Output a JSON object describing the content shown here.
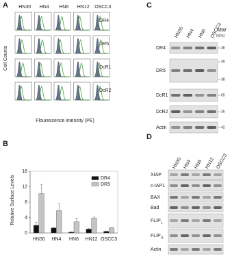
{
  "panel_a": {
    "label": "A",
    "columns": [
      "HN30",
      "HN4",
      "HN6",
      "HN12",
      "OSCC3"
    ],
    "rows": [
      "DR4",
      "DR5",
      "DcR1",
      "DcR2"
    ],
    "y_label": "Cell Counts",
    "x_label": "Flourescence intensity (PE)"
  },
  "chart_data": {
    "type": "bar",
    "label": "B",
    "y_label": "Relative Surface Levels",
    "categories": [
      "HN30",
      "HN4",
      "HN6",
      "HN12",
      "OSCC3"
    ],
    "series": [
      {
        "name": "DR4",
        "color": "#111111",
        "values": [
          2,
          1.3,
          0.2,
          1,
          0.4
        ],
        "errors": [
          0.8,
          0.1,
          0.1,
          0.2,
          0.1
        ]
      },
      {
        "name": "DR5",
        "color": "#c4c4c4",
        "values": [
          10.2,
          5.8,
          2.9,
          3.8,
          1.3
        ],
        "errors": [
          2.4,
          1.8,
          0.9,
          0.3,
          0.1
        ]
      }
    ],
    "ylim": [
      0,
      16
    ],
    "yticks": [
      0,
      4,
      8,
      12,
      16
    ],
    "legend": "upper right"
  },
  "panel_c": {
    "label": "C",
    "lanes": [
      "HN30",
      "HN4",
      "HN6",
      "OSCC3"
    ],
    "mw_title": "MW",
    "mw_unit": "(kDa)",
    "rows": [
      {
        "name": "DR4",
        "mw": [
          "38"
        ]
      },
      {
        "name": "DR5",
        "mw": [
          "49",
          "38"
        ]
      },
      {
        "name": "DcR1",
        "mw": [
          "65"
        ]
      },
      {
        "name": "DcR2",
        "mw": [
          "35"
        ]
      },
      {
        "name": "Actin",
        "mw": [
          "42"
        ]
      }
    ]
  },
  "panel_d": {
    "label": "D",
    "lanes": [
      "HN30",
      "HN4",
      "HN6",
      "HN12",
      "OSCC3"
    ],
    "rows": [
      {
        "name": "XIAP"
      },
      {
        "name": "c-IAP1"
      },
      {
        "name": "BAX"
      },
      {
        "name": "Bad"
      },
      {
        "name": "FLIP",
        "sub": "L"
      },
      {
        "name": "FLIP",
        "sub": "S"
      },
      {
        "name": "Actin"
      }
    ]
  }
}
